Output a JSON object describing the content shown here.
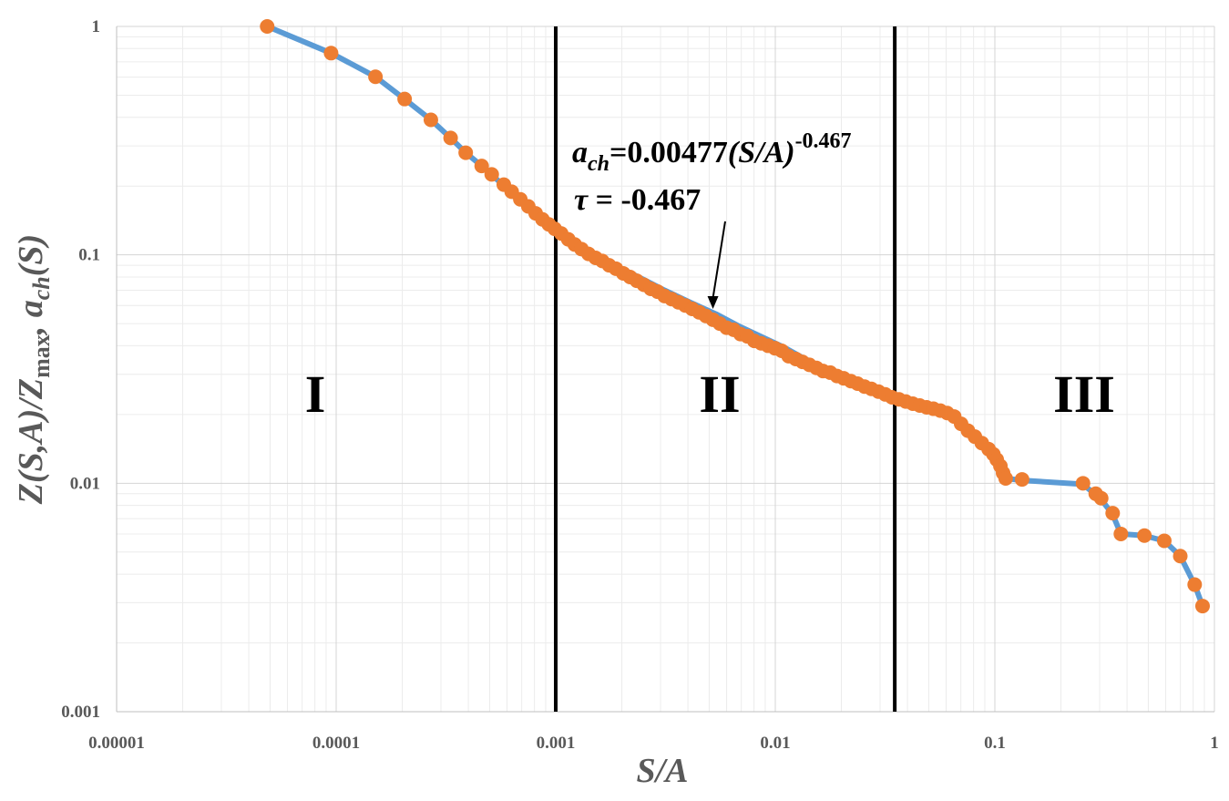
{
  "chart_data": {
    "type": "scatter",
    "x_scale": "log",
    "y_scale": "log",
    "xlim": [
      1e-05,
      1
    ],
    "ylim": [
      0.001,
      1
    ],
    "xlabel": "S/A",
    "ylabel": {
      "part1": "Z(S,A)/Z",
      "part2": "max",
      "part3": ", a",
      "part4": "ch",
      "part5": "(S)"
    },
    "x_ticks": [
      "0.00001",
      "0.0001",
      "0.001",
      "0.01",
      "0.1",
      "1"
    ],
    "y_ticks": [
      "1",
      "0.1",
      "0.01",
      "0.001"
    ],
    "grid": true,
    "vertical_lines_x": [
      0.001,
      0.035
    ],
    "regions": [
      "I",
      "II",
      "III"
    ],
    "annotation": {
      "fit_lhs_base": "a",
      "fit_lhs_sub": "ch",
      "fit_mid": "=0.00477",
      "fit_paren": "(S/A)",
      "fit_exp": "-0.467",
      "tau_symbol": "τ",
      "tau_rest": " = -0.467",
      "arrow_target": [
        0.0052,
        0.058
      ]
    },
    "series": [
      {
        "style": "line",
        "color": "#5B9BD5",
        "x": [
          4.85e-05,
          9.48e-05,
          0.000151,
          0.000205,
          0.00027,
          0.000332,
          0.000389,
          0.00046,
          0.000551,
          0.000647,
          0.000771,
          0.000914,
          0.001,
          0.00126,
          0.00152,
          0.00191,
          0.00251,
          0.00313,
          0.00409,
          0.00538,
          0.00675,
          0.00855,
          0.0109,
          0.0133,
          0.0161,
          0.021,
          0.0257,
          0.0321,
          0.0402,
          0.0507,
          0.062,
          0.0722,
          0.0828,
          0.0925,
          0.1,
          0.104,
          0.108,
          0.112,
          0.133,
          0.252,
          0.288,
          0.305,
          0.344,
          0.375,
          0.48,
          0.591,
          0.699,
          0.813,
          0.883
        ],
        "y": [
          1,
          0.764,
          0.602,
          0.481,
          0.39,
          0.325,
          0.28,
          0.245,
          0.21,
          0.18,
          0.155,
          0.138,
          0.13,
          0.111,
          0.1,
          0.089,
          0.078,
          0.07,
          0.062,
          0.055,
          0.049,
          0.044,
          0.0395,
          0.0355,
          0.0325,
          0.0295,
          0.0268,
          0.0247,
          0.0227,
          0.021,
          0.0195,
          0.0175,
          0.0158,
          0.0142,
          0.0132,
          0.0122,
          0.0112,
          0.0105,
          0.0103,
          0.0099,
          0.0089,
          0.0085,
          0.0073,
          0.006,
          0.0059,
          0.0056,
          0.0048,
          0.0036,
          0.0029
        ]
      },
      {
        "style": "markers",
        "color": "#ED7D31",
        "x": [
          4.85e-05,
          9.48e-05,
          0.000151,
          0.000205,
          0.00027,
          0.000332,
          0.000389,
          0.00046,
          0.000511,
          0.00058,
          0.00063,
          0.00069,
          0.00075,
          0.00081,
          0.00087,
          0.00093,
          0.00099,
          0.00106,
          0.00114,
          0.00122,
          0.00131,
          0.00141,
          0.00152,
          0.00163,
          0.00175,
          0.00188,
          0.00203,
          0.00218,
          0.00234,
          0.00252,
          0.00271,
          0.00291,
          0.00313,
          0.00337,
          0.00362,
          0.00389,
          0.00418,
          0.0045,
          0.00483,
          0.0052,
          0.00559,
          0.006,
          0.00646,
          0.00694,
          0.00746,
          0.00802,
          0.00862,
          0.00927,
          0.00997,
          0.0107,
          0.0115,
          0.0124,
          0.0133,
          0.0143,
          0.0154,
          0.0165,
          0.0178,
          0.0191,
          0.0205,
          0.0221,
          0.0237,
          0.0255,
          0.0274,
          0.0295,
          0.0317,
          0.034,
          0.0366,
          0.0393,
          0.0423,
          0.0455,
          0.0489,
          0.0525,
          0.0565,
          0.0607,
          0.0653,
          0.0702,
          0.0754,
          0.0811,
          0.0872,
          0.0937,
          0.0985,
          0.102,
          0.106,
          0.109,
          0.112,
          0.133,
          0.252,
          0.288,
          0.305,
          0.344,
          0.375,
          0.48,
          0.591,
          0.699,
          0.813,
          0.883
        ],
        "y": [
          1,
          0.764,
          0.602,
          0.481,
          0.39,
          0.325,
          0.28,
          0.245,
          0.225,
          0.203,
          0.189,
          0.175,
          0.163,
          0.152,
          0.143,
          0.136,
          0.13,
          0.124,
          0.117,
          0.111,
          0.106,
          0.101,
          0.097,
          0.094,
          0.09,
          0.087,
          0.083,
          0.08,
          0.077,
          0.074,
          0.071,
          0.069,
          0.066,
          0.064,
          0.062,
          0.06,
          0.058,
          0.056,
          0.054,
          0.052,
          0.05,
          0.048,
          0.047,
          0.045,
          0.044,
          0.042,
          0.041,
          0.04,
          0.039,
          0.038,
          0.036,
          0.035,
          0.034,
          0.033,
          0.032,
          0.031,
          0.0305,
          0.0295,
          0.0288,
          0.028,
          0.0273,
          0.0265,
          0.0259,
          0.0252,
          0.0245,
          0.0238,
          0.0233,
          0.0228,
          0.0223,
          0.0219,
          0.0215,
          0.0212,
          0.0208,
          0.0203,
          0.0196,
          0.0182,
          0.017,
          0.016,
          0.015,
          0.0141,
          0.0134,
          0.0127,
          0.0119,
          0.0111,
          0.0105,
          0.0104,
          0.01,
          0.009,
          0.0086,
          0.0074,
          0.006,
          0.0059,
          0.0056,
          0.0048,
          0.0036,
          0.0029
        ]
      }
    ]
  }
}
